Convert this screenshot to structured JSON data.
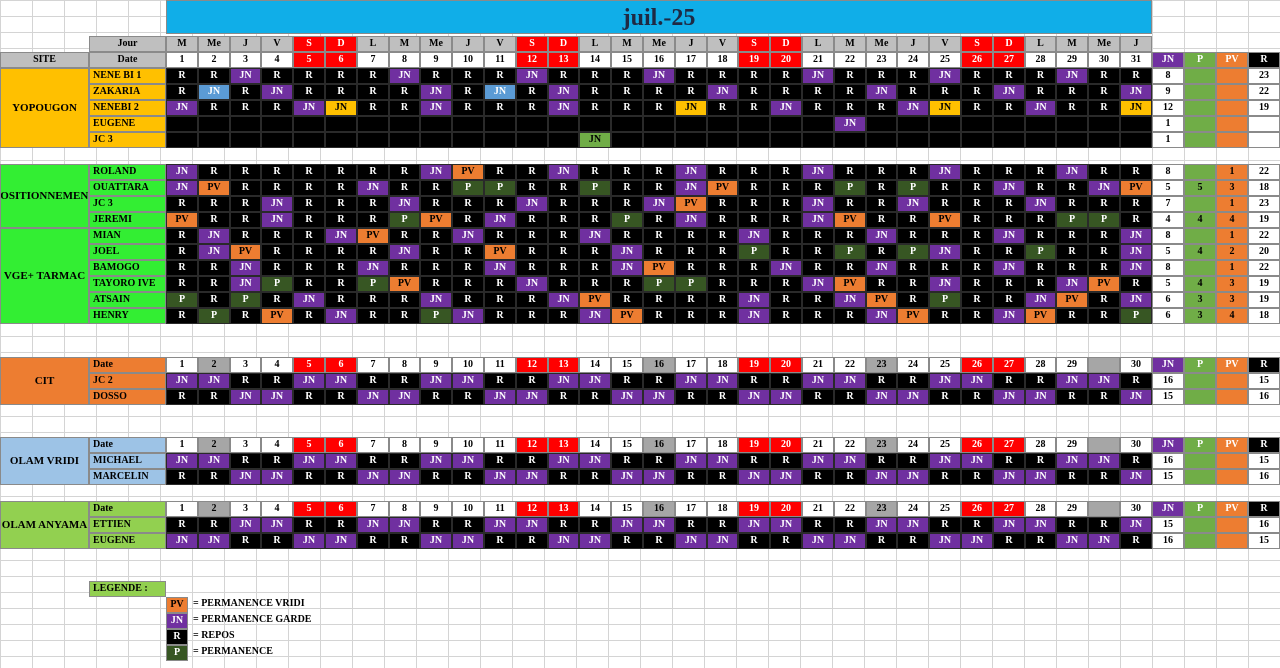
{
  "title": "juil.-25",
  "labels": {
    "site": "SITE",
    "jour": "Jour",
    "date": "Date",
    "jn": "JN",
    "p": "P",
    "pv": "PV",
    "r": "R"
  },
  "colors": {
    "title_bar": "#10aee8",
    "jn": "#7030a0",
    "pv": "#ed7d31",
    "r": "#000000",
    "p": "#375623",
    "weekend": "#ff0000",
    "weekday": "#bfbfbf",
    "yopougon": "#ffc000",
    "base": "#33ee33",
    "cit": "#ed7d31",
    "olam_vridi": "#9dc3e6",
    "olam_anyama": "#92d050"
  },
  "month": {
    "days": [
      "M",
      "Me",
      "J",
      "V",
      "S",
      "D",
      "L",
      "M",
      "Me",
      "J",
      "V",
      "S",
      "D",
      "L",
      "M",
      "Me",
      "J",
      "V",
      "S",
      "D",
      "L",
      "M",
      "Me",
      "J",
      "V",
      "S",
      "D",
      "L",
      "M",
      "Me",
      "J"
    ],
    "dates": [
      "1",
      "2",
      "3",
      "4",
      "5",
      "6",
      "7",
      "8",
      "9",
      "10",
      "11",
      "12",
      "13",
      "14",
      "15",
      "16",
      "17",
      "18",
      "19",
      "20",
      "21",
      "22",
      "23",
      "24",
      "25",
      "26",
      "27",
      "28",
      "29",
      "30",
      "31"
    ]
  },
  "sections": [
    {
      "site": "YOPOUGON",
      "rows": [
        {
          "name": "NENE BI 1",
          "cells": "R R JN R R R R JN R R R JN R R R JN R R R R JN R R R JN R R R JN R R R JN",
          "totals": [
            "8",
            "",
            "",
            "23"
          ]
        },
        {
          "name": "ZAKARIA",
          "cells": "R JNc R JN R R R R JN R JNc R JN R R R R JN R R R R JN R R R JN R R R JN R R",
          "totals": [
            "9",
            "",
            "",
            "22"
          ]
        },
        {
          "name": "NENEBI 2",
          "cells": "JN R R R JN JNy R R JN R R R JN R R R JNy R R JN R R R JN JNy R R JN R R JNy R",
          "totals": [
            "12",
            "",
            "",
            "19"
          ]
        },
        {
          "name": "EUGENE",
          "cells": "x x x x x x x x x x x x x x x x x x x x x JN x x x x x x x x x",
          "totals": [
            "1",
            "",
            "",
            ""
          ]
        },
        {
          "name": "JC 3",
          "cells": "x x x x x x x x x x x x x JNg x x x x x x x x x x x x x x x x x",
          "totals": [
            "1",
            "",
            "",
            ""
          ]
        }
      ]
    },
    {
      "site": "BASE + POSITIONNEMENT VRIDI",
      "rows": [
        {
          "name": "ROLAND",
          "cells": "JN R R R R R R R JN PV R R JN R R R JN R R R JN R R R JN R R R JN R R",
          "totals": [
            "8",
            "",
            "1",
            "22"
          ]
        },
        {
          "name": "OUATTARA",
          "cells": "JN PV R R R R JN R R P P R R P R R JN PV R R R P R P R R JN R R JN PV",
          "totals": [
            "5",
            "5",
            "3",
            "18"
          ]
        },
        {
          "name": "JC 3",
          "cells": "R R R JN R R R JN R R R JN R R R JN PV R R R JN R R JN R R R JN R R R",
          "totals": [
            "7",
            "",
            "1",
            "23"
          ]
        },
        {
          "name": "JEREMI",
          "cells": "PV R R JN R R R P PV R JN R R R P R JN R R R JN PV R R PV R R R P P R",
          "totals": [
            "4",
            "4",
            "4",
            "19"
          ]
        }
      ]
    },
    {
      "site": "VGE+ TARMAC",
      "rows": [
        {
          "name": "MIAN",
          "cells": "R JN R R R JN PV R R JN R R R JN R R R R JN R R R JN R R R JN R R R JN",
          "totals": [
            "8",
            "",
            "1",
            "22"
          ]
        },
        {
          "name": "JOEL",
          "cells": "R JN PV R R R R JN R R PV R R R JN R R R P R R P R P JN R R P R R JN",
          "totals": [
            "5",
            "4",
            "2",
            "20"
          ]
        },
        {
          "name": "BAMOGO",
          "cells": "R R JN R R R JN R R R JN R R R JN PV R R R JN R R JN R R R JN R R R JN",
          "totals": [
            "8",
            "",
            "1",
            "22"
          ]
        },
        {
          "name": "TAYORO IVE",
          "cells": "R R JN P R R P PV R R R JN R R R P P R R R JN PV R R JN R R R JN PV R",
          "totals": [
            "5",
            "4",
            "3",
            "19"
          ]
        },
        {
          "name": "ATSAIN",
          "cells": "P R P R JN R R R JN R R R JN PV R R R R JN R R JN PV R P R R JN PV R JN",
          "totals": [
            "6",
            "3",
            "3",
            "19"
          ]
        },
        {
          "name": "HENRY",
          "cells": "R P R PV R JN R R P JN R R R JN PV R R R JN R R R JN PV R R JN PV R R P",
          "totals": [
            "6",
            "3",
            "4",
            "18"
          ]
        }
      ]
    }
  ],
  "groups": [
    {
      "site": "CIT",
      "rows": [
        {
          "name": "JC 2",
          "cells": "JN JN R R JN JN R R JN JN R R JN JN R R JN JN R R JN JN R R JN JN R R JN JN R",
          "totals": [
            "16",
            "",
            "",
            "15"
          ]
        },
        {
          "name": "DOSSO",
          "cells": "R R JN JN R R JN JN R R JN JN R R JN JN R R JN JN R R JN JN R R JN JN R R JN",
          "totals": [
            "15",
            "",
            "",
            "16"
          ]
        }
      ]
    },
    {
      "site": "OLAM VRIDI",
      "rows": [
        {
          "name": "MICHAEL",
          "cells": "JN JN R R JN JN R R JN JN R R JN JN R R JN JN R R JN JN R R JN JN R R JN JN R",
          "totals": [
            "16",
            "",
            "",
            "15"
          ]
        },
        {
          "name": "MARCELIN",
          "cells": "R R JN JN R R JN JN R R JN JN R R JN JN R R JN JN R R JN JN R R JN JN R R JN",
          "totals": [
            "15",
            "",
            "",
            "16"
          ]
        }
      ]
    },
    {
      "site": "OLAM ANYAMA",
      "rows": [
        {
          "name": "ETTIEN",
          "cells": "R R JN JN R R JN JN R R JN JN R R JN JN R R JN JN R R JN JN R R JN JN R R JN",
          "totals": [
            "15",
            "",
            "",
            "16"
          ]
        },
        {
          "name": "EUGENE",
          "cells": "JN JN R R JN JN R R JN JN R R JN JN R R JN JN R R JN JN R R JN JN R R JN JN R",
          "totals": [
            "16",
            "",
            "",
            "15"
          ]
        }
      ]
    }
  ],
  "short_dates": [
    "1",
    "2",
    "3",
    "4",
    "5",
    "6",
    "7",
    "8",
    "9",
    "10",
    "11",
    "12",
    "13",
    "14",
    "15",
    "16",
    "17",
    "18",
    "19",
    "20",
    "21",
    "22",
    "23",
    "24",
    "25",
    "26",
    "27",
    "28",
    "29",
    "",
    "30"
  ],
  "legend": {
    "title": "LEGENDE :",
    "items": [
      {
        "code": "PV",
        "text": "=  PERMANENCE VRIDI"
      },
      {
        "code": "JN",
        "text": "=  PERMANENCE GARDE"
      },
      {
        "code": "R",
        "text": "=  REPOS"
      },
      {
        "code": "P",
        "text": "=  PERMANENCE"
      }
    ]
  }
}
